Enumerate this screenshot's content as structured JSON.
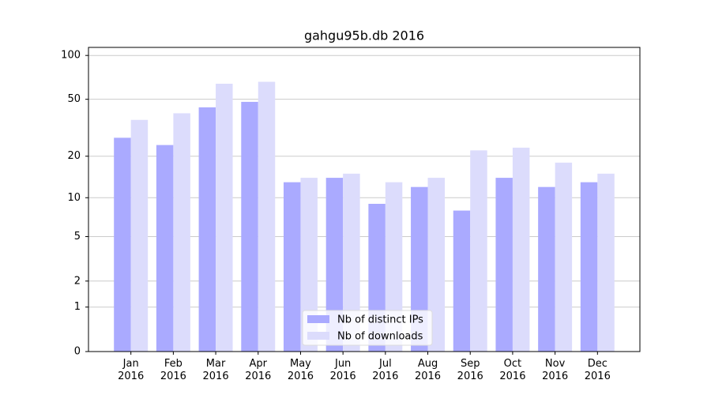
{
  "chart_data": {
    "type": "bar",
    "title": "gahgu95b.db 2016",
    "categories": [
      "Jan\n2016",
      "Feb\n2016",
      "Mar\n2016",
      "Apr\n2016",
      "May\n2016",
      "Jun\n2016",
      "Jul\n2016",
      "Aug\n2016",
      "Sep\n2016",
      "Oct\n2016",
      "Nov\n2016",
      "Dec\n2016"
    ],
    "series": [
      {
        "name": "Nb of distinct IPs",
        "color": "#aaaaff",
        "values": [
          27,
          24,
          44,
          48,
          13,
          14,
          9,
          12,
          8,
          14,
          12,
          13
        ]
      },
      {
        "name": "Nb of downloads",
        "color": "#dcdcfc",
        "values": [
          36,
          40,
          64,
          66,
          14,
          15,
          13,
          14,
          22,
          23,
          18,
          15
        ]
      }
    ],
    "yscale": "log1p",
    "ylim": [
      0,
      113.5
    ],
    "yticks": [
      0,
      1,
      2,
      5,
      10,
      20,
      50,
      100
    ],
    "grid": true,
    "legend": "lower center"
  }
}
